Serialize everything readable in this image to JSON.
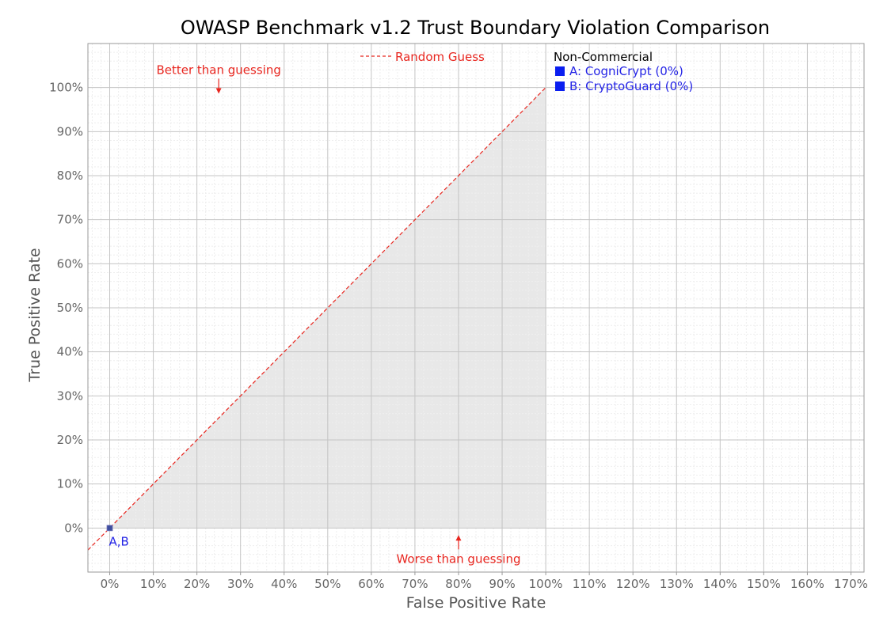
{
  "chart_data": {
    "type": "scatter",
    "title": "OWASP Benchmark v1.2 Trust Boundary Violation Comparison",
    "xlabel": "False Positive Rate",
    "ylabel": "True Positive Rate",
    "xlim": [
      -5,
      173
    ],
    "ylim": [
      -10,
      110
    ],
    "x_ticks": [
      "0%",
      "10%",
      "20%",
      "30%",
      "40%",
      "50%",
      "60%",
      "70%",
      "80%",
      "90%",
      "100%",
      "110%",
      "120%",
      "130%",
      "140%",
      "150%",
      "160%",
      "170%"
    ],
    "y_ticks": [
      "0%",
      "10%",
      "20%",
      "30%",
      "40%",
      "50%",
      "60%",
      "70%",
      "80%",
      "90%",
      "100%"
    ],
    "grid": true,
    "series": [
      {
        "name": "A: CogniCrypt (0%)",
        "x": [
          0
        ],
        "y": [
          0
        ],
        "color": "#3f4fa0"
      },
      {
        "name": "B: CryptoGuard (0%)",
        "x": [
          0
        ],
        "y": [
          0
        ],
        "color": "#3f4fa0"
      }
    ],
    "point_label": "A,B",
    "reference_line": {
      "label": "Random Guess",
      "from": [
        -5,
        -5
      ],
      "to": [
        100,
        100
      ],
      "color": "#e8261f",
      "style": "dashed"
    },
    "annotations": {
      "better": {
        "text": "Better than guessing",
        "x": 25,
        "y": 104
      },
      "worse": {
        "text": "Worse than guessing",
        "x": 80,
        "y": -7
      }
    },
    "legend": {
      "placement": "top-right",
      "group_title": "Non-Commercial",
      "entries": [
        "A: CogniCrypt (0%)",
        "B: CryptoGuard (0%)"
      ],
      "marker_color": "#0a1ef0"
    },
    "colors": {
      "shaded_region": "#e8e8e8",
      "grid": "#c4c4c4",
      "minor_grid": "#eeeeee",
      "reference": "#e8261f"
    }
  }
}
